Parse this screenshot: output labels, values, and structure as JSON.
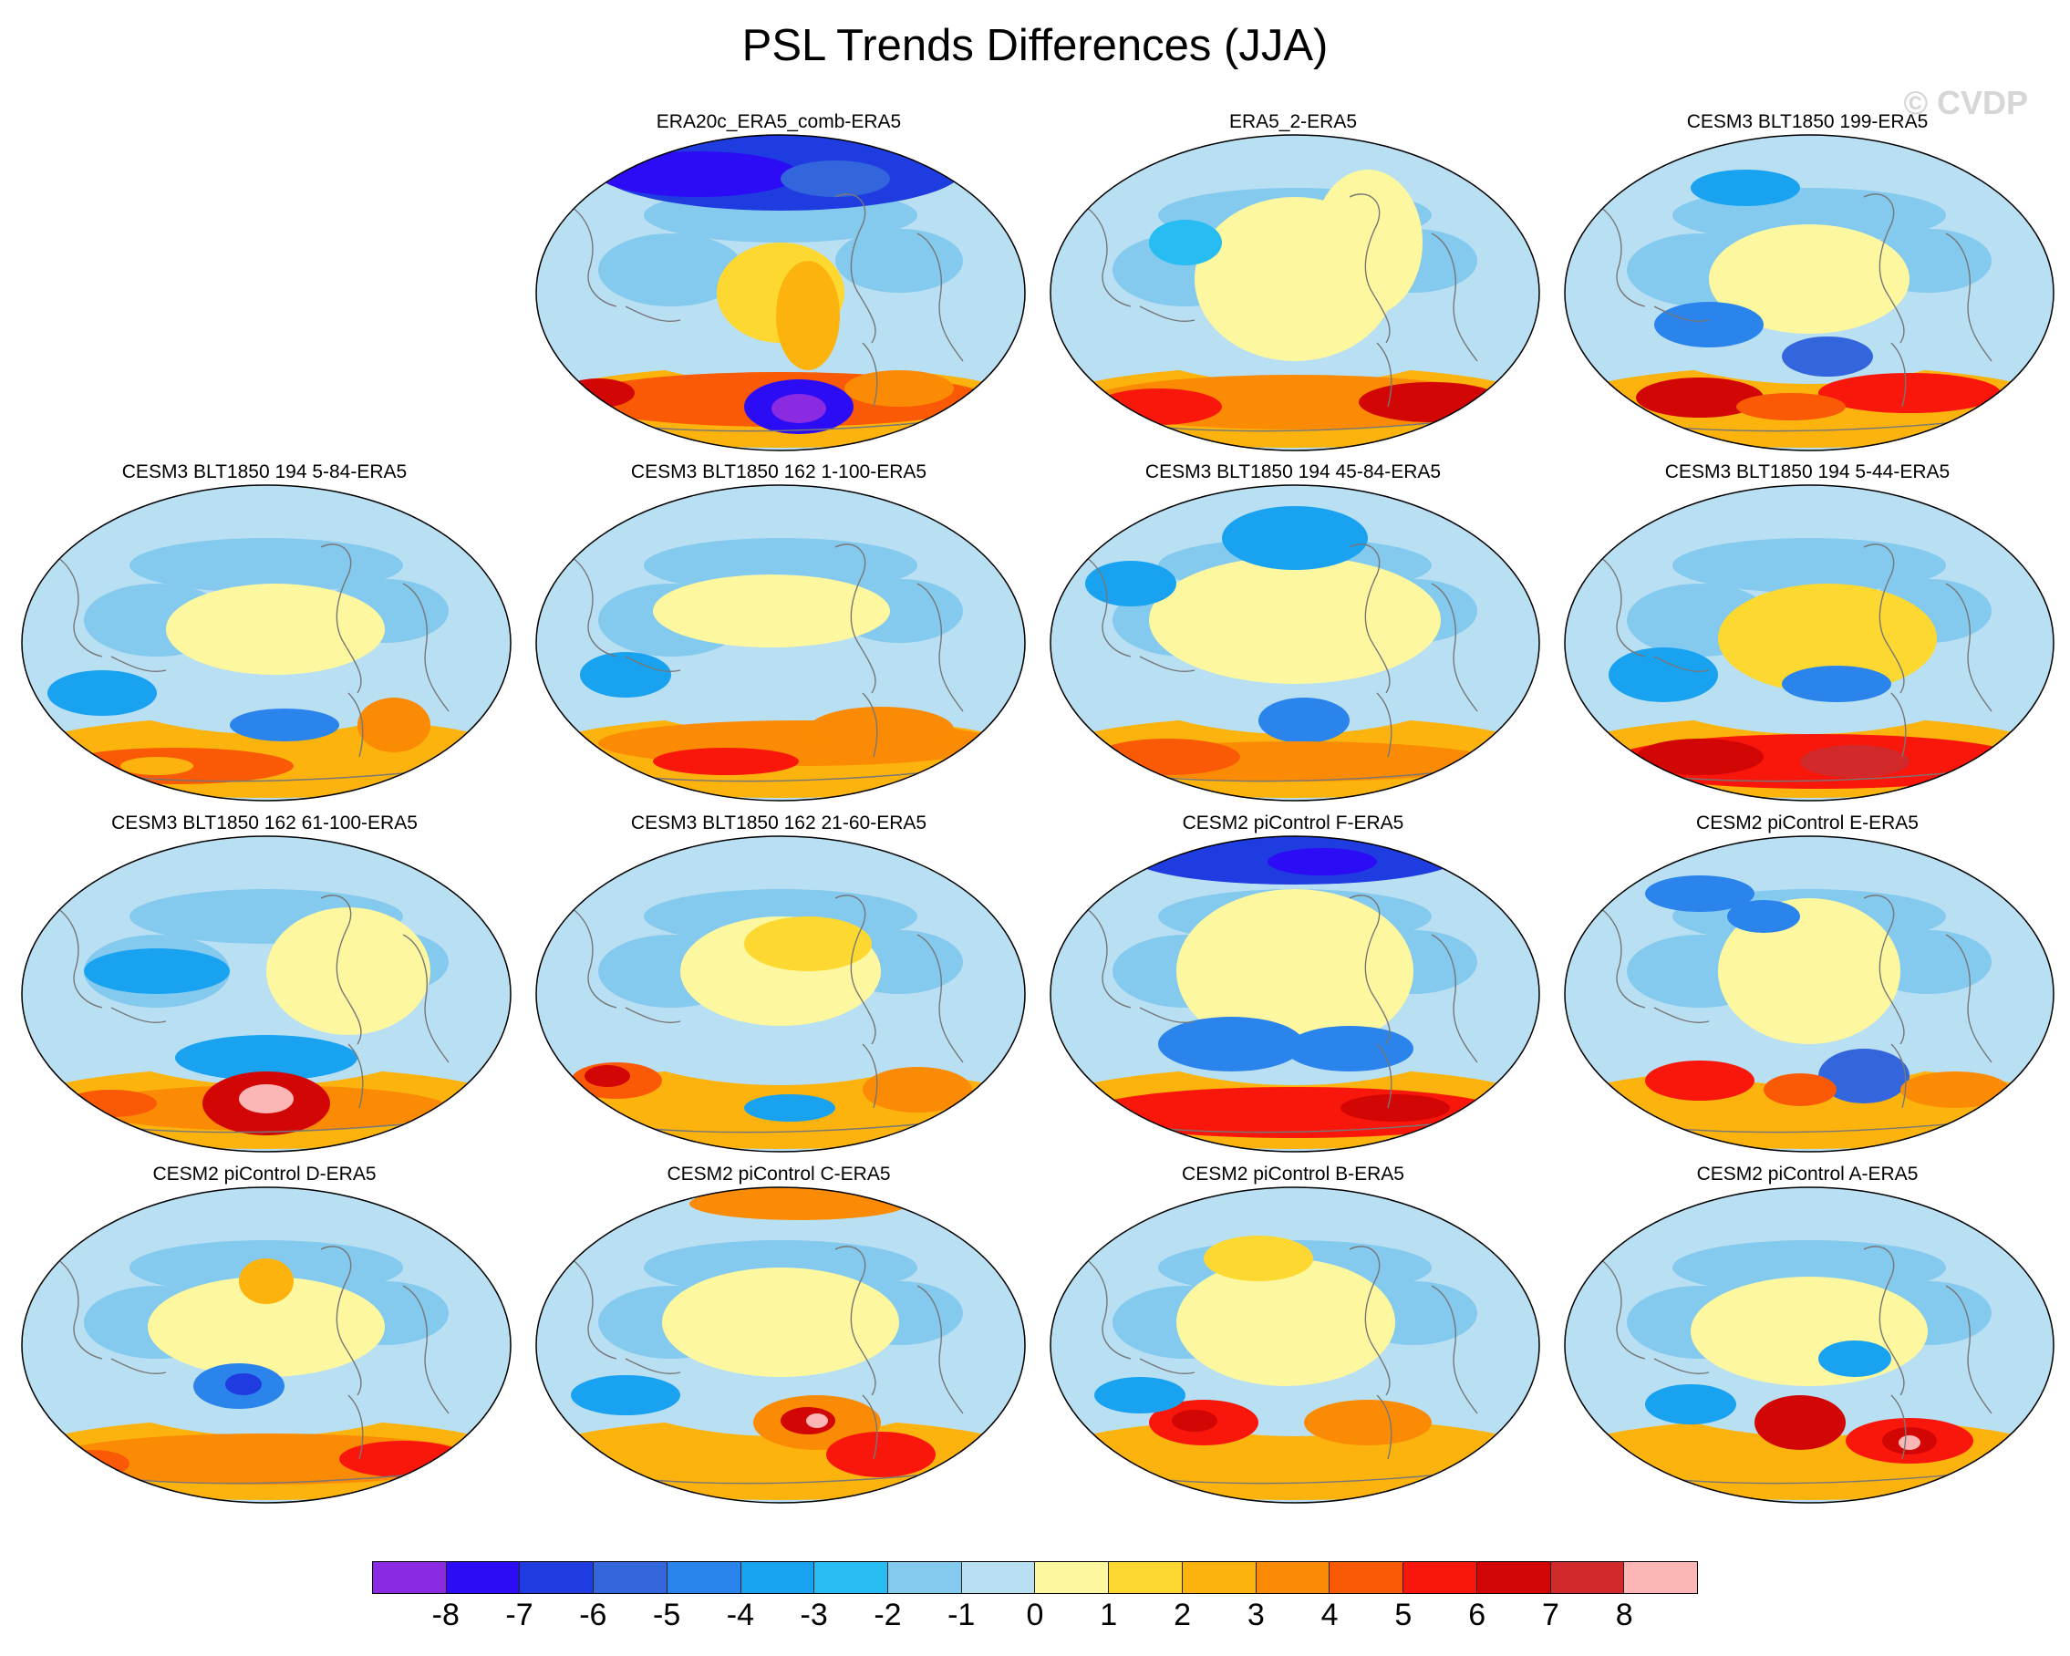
{
  "title": "PSL Trends Differences (JJA)",
  "watermark": "© CVDP",
  "chart_data": {
    "type": "contour-map-panels",
    "projection": "Robinson (global, Pacific-centered)",
    "variable": "PSL",
    "season": "JJA",
    "panels": [
      {
        "name": "ERA20c_ERA5_comb-ERA5",
        "pattern": "strong negative over Arctic/N Atlantic, positive ring near Antarctica, strong negative south of South America"
      },
      {
        "name": "ERA5_2-ERA5",
        "pattern": "weak mixed, positive ring near Antarctica"
      },
      {
        "name": "CESM3 BLT1850 199-ERA5",
        "pattern": "negative in S Pacific, positive near Antarctica"
      },
      {
        "name": "CESM3 BLT1850 194 5-84-ERA5",
        "pattern": "weak mixed, positive near Antarctica"
      },
      {
        "name": "CESM3 BLT1850 162 1-100-ERA5",
        "pattern": "weak mixed, positive near Antarctica"
      },
      {
        "name": "CESM3 BLT1850 194 45-84-ERA5",
        "pattern": "negative N Atlantic, positive near Antarctica"
      },
      {
        "name": "CESM3 BLT1850 194 5-44-ERA5",
        "pattern": "strong positive ring near Antarctica"
      },
      {
        "name": "CESM3 BLT1850 162 61-100-ERA5",
        "pattern": "strong positive maximum south of Pacific"
      },
      {
        "name": "CESM3 BLT1850 162 21-60-ERA5",
        "pattern": "positive near Antarctica"
      },
      {
        "name": "CESM2 piControl F-ERA5",
        "pattern": "strong negative over Arctic, positive ring near Antarctica"
      },
      {
        "name": "CESM2 piControl E-ERA5",
        "pattern": "negative N Pacific, positive near Antarctica"
      },
      {
        "name": "CESM2 piControl D-ERA5",
        "pattern": "negative S Pacific, positive near Antarctica"
      },
      {
        "name": "CESM2 piControl C-ERA5",
        "pattern": "strong positive south of Pacific"
      },
      {
        "name": "CESM2 piControl B-ERA5",
        "pattern": "positive near Antarctica"
      },
      {
        "name": "CESM2 piControl A-ERA5",
        "pattern": "strong positive near Antarctica"
      }
    ],
    "colorbar": {
      "labels": [
        "-8",
        "-7",
        "-6",
        "-5",
        "-4",
        "-3",
        "-2",
        "-1",
        "0",
        "1",
        "2",
        "3",
        "4",
        "5",
        "6",
        "7",
        "8"
      ],
      "colors": [
        "#8A2BE2",
        "#2C0CF5",
        "#1E3CE0",
        "#3366DD",
        "#2A84EC",
        "#18A2F0",
        "#27BCF2",
        "#84C9EE",
        "#B9DFF3",
        "#FDF7A0",
        "#FDD831",
        "#FCB30D",
        "#FB8B04",
        "#FA5A05",
        "#F9160B",
        "#D20605",
        "#D22A2A",
        "#FDB6B6"
      ]
    }
  }
}
